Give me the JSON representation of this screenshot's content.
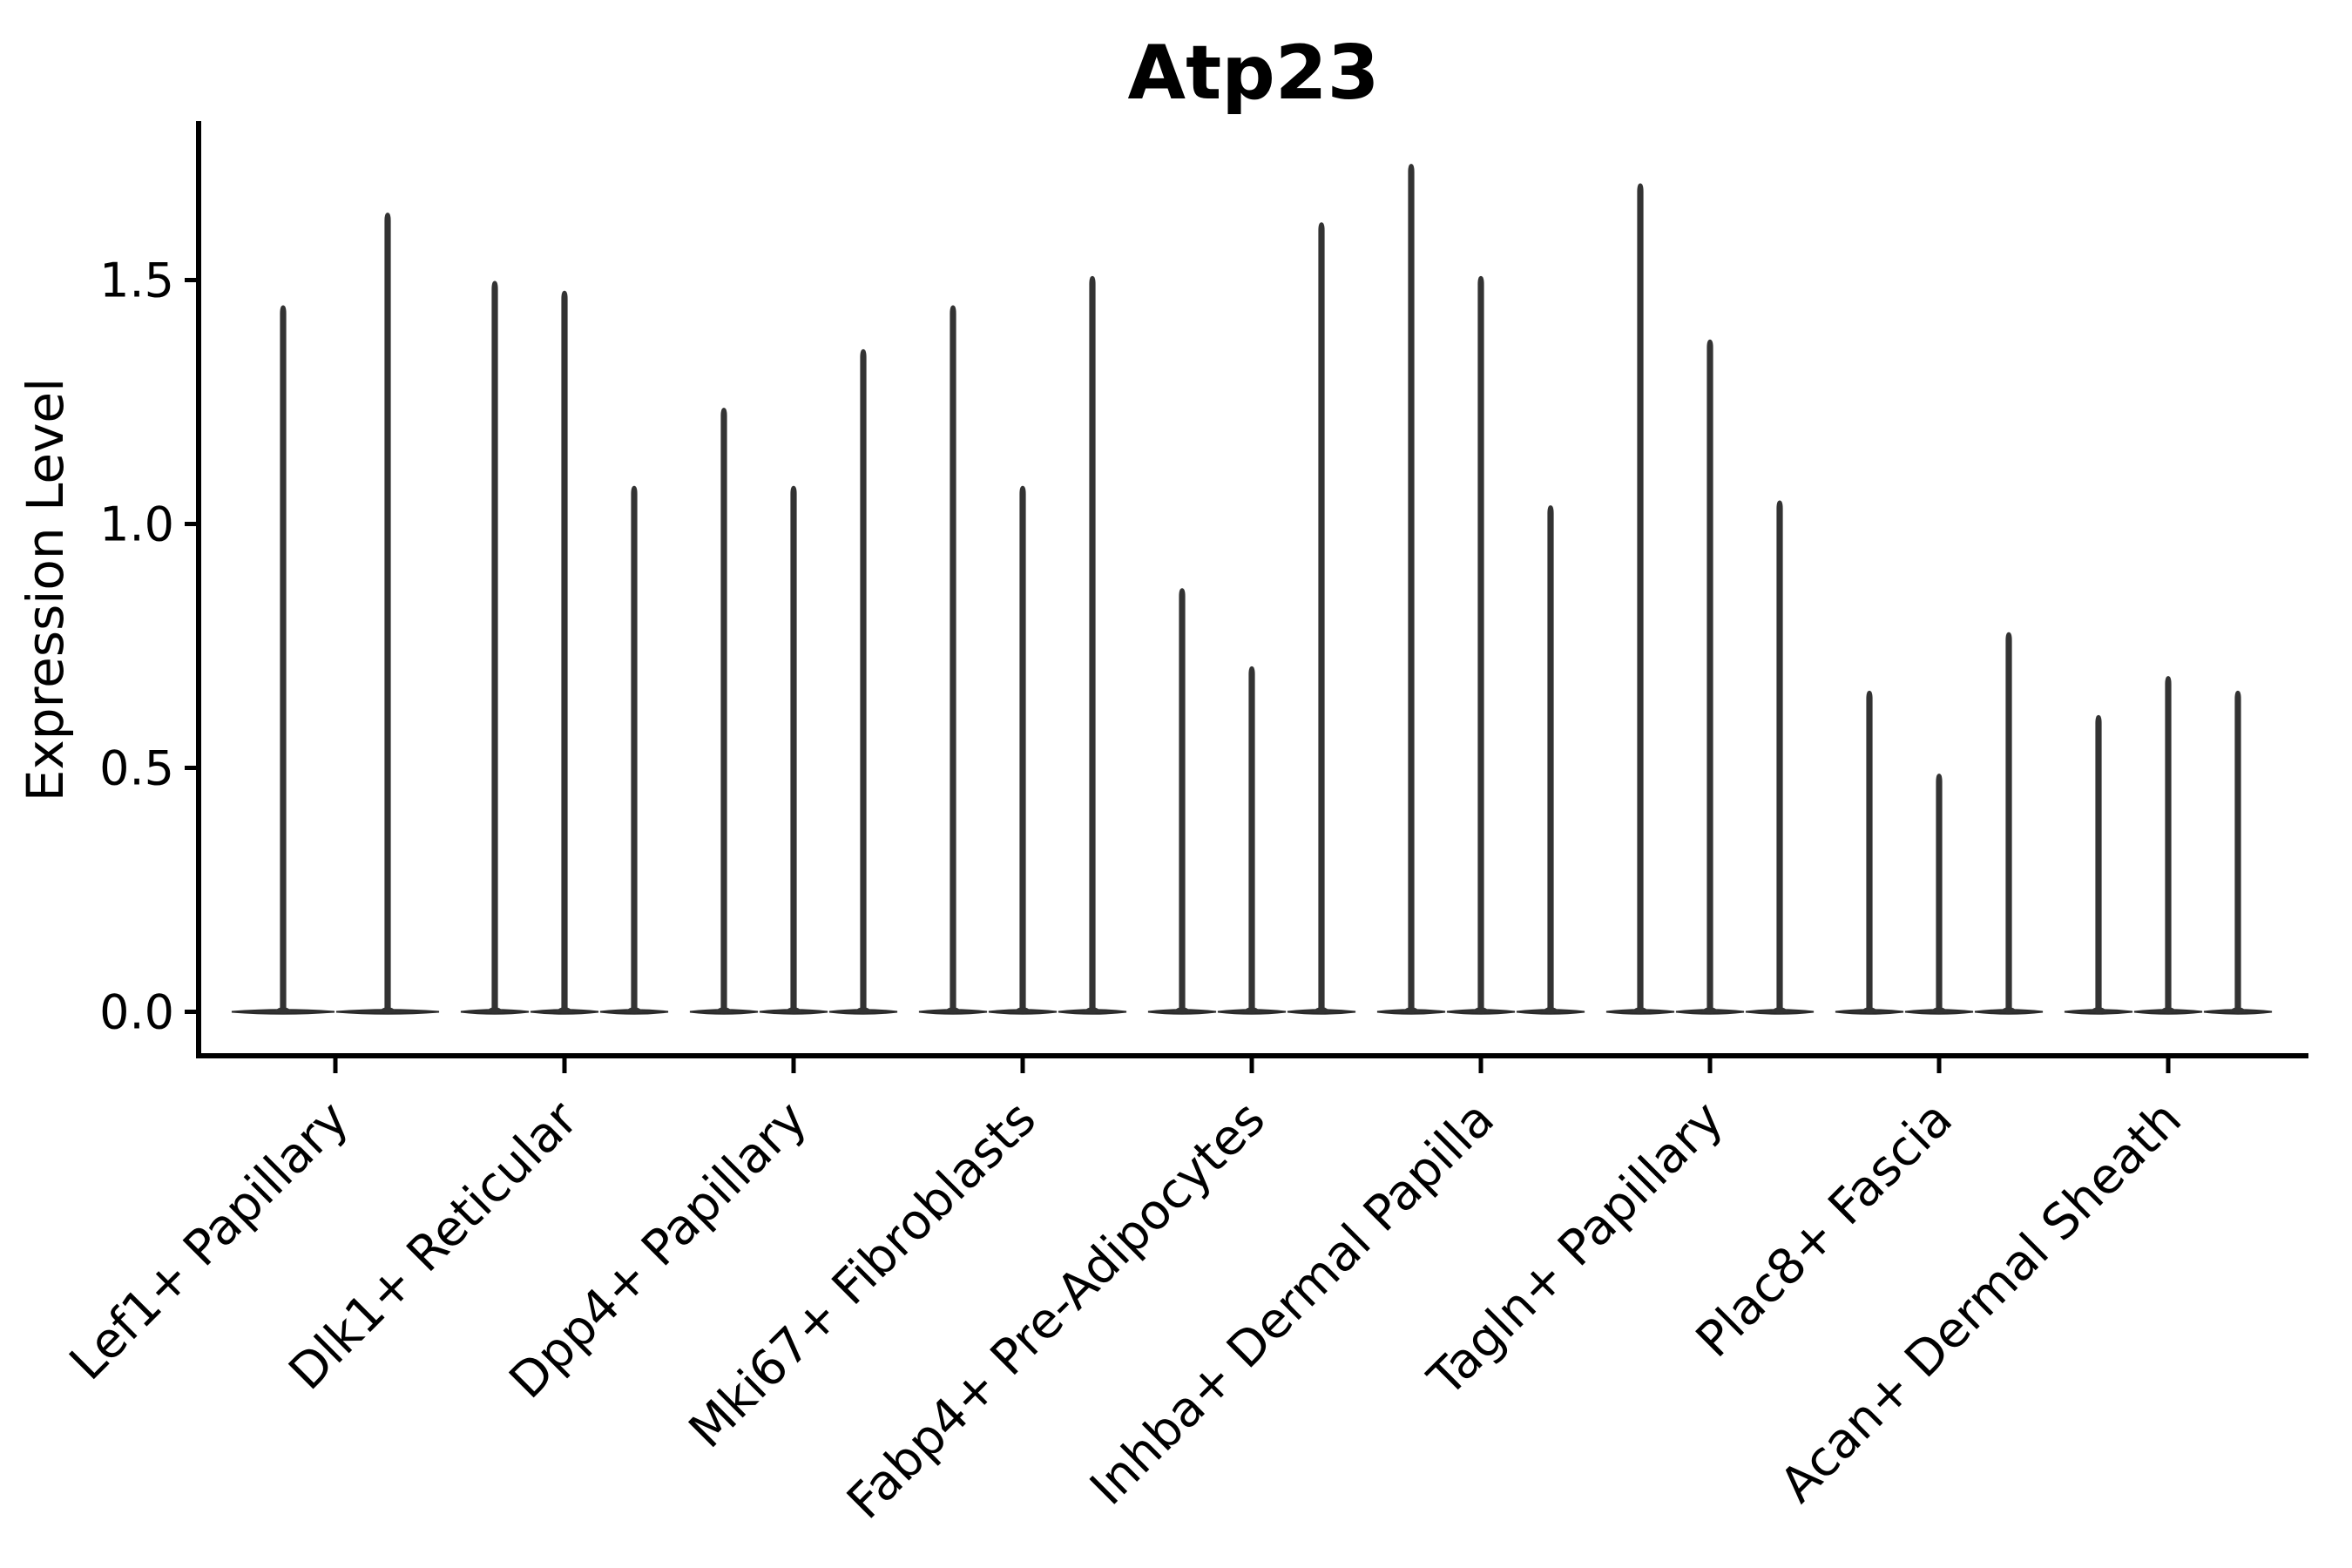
{
  "figure": {
    "title": "Atp23",
    "background_color": "#ffffff"
  },
  "chart_data": {
    "type": "violin",
    "title": "Atp23",
    "xlabel": "",
    "ylabel": "Expression Level",
    "ylim": [
      -0.09,
      1.83
    ],
    "yticks": [
      "0.0",
      "0.5",
      "1.0",
      "1.5"
    ],
    "ytick_values": [
      0.0,
      0.5,
      1.0,
      1.5
    ],
    "grid": "off",
    "legend": "none",
    "violin_style": "thin needle violins: dense mass at 0 (flat lens on baseline) with a narrow spike up to the max expression value",
    "colors": {
      "violin_fill": "#333333",
      "violin_edge": "#2a2a2a",
      "axis": "#000000",
      "text": "#000000"
    },
    "categories": [
      "Lef1+ Papillary",
      "Dlk1+ Reticular",
      "Dpp4+ Papillary",
      "Mki67+ Fibroblasts",
      "Fabp4+ Pre-Adipocytes",
      "Inhba+ Dermal Papilla",
      "Tagln+ Papillary",
      "Plac8+ Fascia",
      "Acan+ Dermal Sheath"
    ],
    "groups": [
      {
        "label": "Lef1+ Papillary",
        "violin_max": [
          1.44,
          1.63
        ]
      },
      {
        "label": "Dlk1+ Reticular",
        "violin_max": [
          1.49,
          1.47,
          1.07
        ]
      },
      {
        "label": "Dpp4+ Papillary",
        "violin_max": [
          1.23,
          1.07,
          1.35
        ]
      },
      {
        "label": "Mki67+ Fibroblasts",
        "violin_max": [
          1.44,
          1.07,
          1.5
        ]
      },
      {
        "label": "Fabp4+ Pre-Adipocytes",
        "violin_max": [
          0.86,
          0.7,
          1.61
        ]
      },
      {
        "label": "Inhba+ Dermal Papilla",
        "violin_max": [
          1.73,
          1.5,
          1.03
        ]
      },
      {
        "label": "Tagln+ Papillary",
        "violin_max": [
          1.69,
          1.37,
          1.04
        ]
      },
      {
        "label": "Plac8+ Fascia",
        "violin_max": [
          0.65,
          0.48,
          0.77
        ]
      },
      {
        "label": "Acan+ Dermal Sheath",
        "violin_max": [
          0.6,
          0.68,
          0.65
        ]
      }
    ]
  }
}
